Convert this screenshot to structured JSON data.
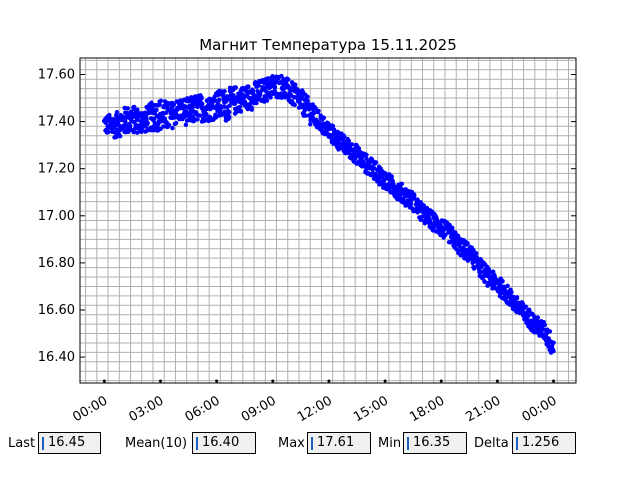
{
  "chart_data": {
    "type": "scatter",
    "title": "Магнит Температура 15.11.2025",
    "xlabel": "",
    "ylabel": "",
    "x_ticks": [
      "00:00",
      "03:00",
      "06:00",
      "09:00",
      "12:00",
      "15:00",
      "18:00",
      "21:00",
      "00:00"
    ],
    "xlim_hours": [
      -1.3,
      25.2
    ],
    "ylim": [
      16.29,
      17.67
    ],
    "y_ticks": [
      "16.40",
      "16.60",
      "16.80",
      "17.00",
      "17.20",
      "17.40",
      "17.60"
    ],
    "y_tick_values": [
      16.4,
      16.6,
      16.8,
      17.0,
      17.2,
      17.4,
      17.6
    ],
    "grid": true,
    "series": [
      {
        "color": "#0000ff",
        "x_hours": [
          0.0,
          0.5,
          1.0,
          1.5,
          2.0,
          2.5,
          3.0,
          3.5,
          4.0,
          4.5,
          5.0,
          5.5,
          6.0,
          6.5,
          7.0,
          7.5,
          8.0,
          8.5,
          9.0,
          9.5,
          10.0,
          10.5,
          11.0,
          11.5,
          12.0,
          12.5,
          13.0,
          13.5,
          14.0,
          14.5,
          15.0,
          15.5,
          16.0,
          16.5,
          17.0,
          17.5,
          18.0,
          18.5,
          19.0,
          19.5,
          20.0,
          20.5,
          21.0,
          21.5,
          22.0,
          22.5,
          23.0,
          23.5,
          24.0
        ],
        "center": [
          17.39,
          17.38,
          17.4,
          17.41,
          17.4,
          17.42,
          17.43,
          17.42,
          17.45,
          17.44,
          17.46,
          17.45,
          17.47,
          17.47,
          17.49,
          17.5,
          17.51,
          17.53,
          17.55,
          17.55,
          17.52,
          17.49,
          17.44,
          17.4,
          17.36,
          17.32,
          17.29,
          17.26,
          17.22,
          17.19,
          17.15,
          17.12,
          17.09,
          17.06,
          17.01,
          16.98,
          16.95,
          16.92,
          16.87,
          16.84,
          16.79,
          16.74,
          16.71,
          16.67,
          16.62,
          16.58,
          16.54,
          16.51,
          16.44
        ],
        "spread": [
          0.04,
          0.05,
          0.06,
          0.06,
          0.05,
          0.06,
          0.07,
          0.06,
          0.05,
          0.06,
          0.06,
          0.05,
          0.06,
          0.07,
          0.06,
          0.05,
          0.06,
          0.05,
          0.05,
          0.05,
          0.05,
          0.05,
          0.05,
          0.04,
          0.04,
          0.04,
          0.04,
          0.04,
          0.04,
          0.04,
          0.04,
          0.04,
          0.04,
          0.04,
          0.04,
          0.04,
          0.04,
          0.04,
          0.04,
          0.04,
          0.04,
          0.04,
          0.04,
          0.04,
          0.04,
          0.04,
          0.04,
          0.04,
          0.05
        ]
      }
    ]
  },
  "stats": {
    "last_label": "Last",
    "last_value": "16.45",
    "mean_label": "Mean(10)",
    "mean_value": "16.40",
    "max_label": "Max",
    "max_value": "17.61",
    "min_label": "Min",
    "min_value": "16.35",
    "delta_label": "Delta",
    "delta_value": "1.256"
  }
}
